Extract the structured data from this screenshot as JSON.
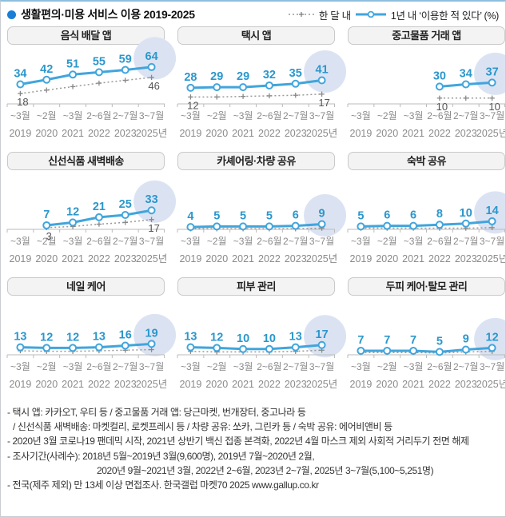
{
  "header": {
    "title": "생활편의·미용 서비스 이용 2019-2025",
    "legend": {
      "monthly_label": "한 달 내",
      "yearly_label": "1년 내  ‘이용한 적 있다’ (%)"
    }
  },
  "chart_data": {
    "type": "line",
    "unit": "%",
    "x_months": [
      "~3월",
      "~2월",
      "~3월",
      "2~6월",
      "2~7월",
      "3~7월"
    ],
    "x_years": [
      "2019",
      "2020",
      "2021",
      "2022",
      "2023",
      "2025년"
    ],
    "legend": [
      {
        "name": "한 달 내",
        "style": "dotted-gray-plus"
      },
      {
        "name": "1년 내 ‘이용한 적 있다’ (%)",
        "style": "solid-blue-circle"
      }
    ],
    "ylim": [
      0,
      70
    ],
    "grid": false,
    "charts": [
      {
        "title": "음식 배달 앱",
        "yearly": [
          34,
          42,
          51,
          55,
          59,
          64
        ],
        "monthly": [
          18,
          24,
          30,
          36,
          41,
          46
        ],
        "monthly_labels": [
          18,
          null,
          null,
          null,
          null,
          46
        ]
      },
      {
        "title": "택시 앱",
        "yearly": [
          28,
          29,
          29,
          32,
          35,
          41
        ],
        "monthly": [
          12,
          12,
          13,
          14,
          15,
          17
        ],
        "monthly_labels": [
          12,
          null,
          null,
          null,
          null,
          17
        ]
      },
      {
        "title": "중고물품 거래 앱",
        "yearly": [
          null,
          null,
          null,
          30,
          34,
          37
        ],
        "monthly": [
          null,
          null,
          null,
          10,
          10,
          10
        ],
        "monthly_labels": [
          null,
          null,
          null,
          10,
          null,
          10
        ]
      },
      {
        "title": "신선식품 새벽배송",
        "yearly": [
          null,
          7,
          12,
          21,
          25,
          33
        ],
        "monthly": [
          null,
          3,
          5,
          9,
          12,
          17
        ],
        "monthly_labels": [
          null,
          3,
          null,
          null,
          null,
          17
        ]
      },
      {
        "title": "카셰어링·차량 공유",
        "yearly": [
          4,
          5,
          5,
          5,
          6,
          9
        ],
        "monthly": [
          1,
          1,
          1,
          1,
          1,
          2
        ],
        "monthly_labels": [
          null,
          null,
          null,
          null,
          null,
          null
        ]
      },
      {
        "title": "숙박 공유",
        "yearly": [
          5,
          6,
          6,
          8,
          10,
          14
        ],
        "monthly": [
          2,
          2,
          2,
          2,
          2,
          3
        ],
        "monthly_labels": [
          null,
          null,
          null,
          null,
          null,
          null
        ]
      },
      {
        "title": "네일 케어",
        "yearly": [
          13,
          12,
          12,
          13,
          16,
          19
        ],
        "monthly": [
          7,
          6,
          6,
          7,
          8,
          9
        ],
        "monthly_labels": [
          null,
          null,
          null,
          null,
          null,
          null
        ]
      },
      {
        "title": "피부 관리",
        "yearly": [
          13,
          12,
          10,
          10,
          13,
          17
        ],
        "monthly": [
          6,
          5,
          5,
          5,
          6,
          8
        ],
        "monthly_labels": [
          null,
          null,
          null,
          null,
          null,
          null
        ]
      },
      {
        "title": "두피 케어·탈모 관리",
        "yearly": [
          7,
          7,
          7,
          5,
          9,
          12
        ],
        "monthly": [
          4,
          4,
          4,
          3,
          5,
          6
        ],
        "monthly_labels": [
          null,
          null,
          null,
          null,
          null,
          null
        ]
      }
    ]
  },
  "footer": {
    "lines": [
      "- 택시 앱: 카카오T, 우티 등 / 중고물품 거래 앱: 당근마켓, 번개장터, 중고나라 등",
      "/ 신선식품 새벽배송: 마켓컬리, 로켓프레시 등 / 차량 공유: 쏘카, 그린카 등 / 숙박 공유: 에어비앤비 등",
      "- 2020년 3월 코로나19 팬데믹 시작, 2021년 상반기 백신 접종 본격화, 2022년 4월 마스크 제외 사회적 거리두기 전면 해제",
      "- 조사기간(사례수):  2018년 5월~2019년 3월(9,600명), 2019년 7월~2020년 2월,",
      "2020년 9월~2021년 3월, 2022년 2~6월, 2023년 2~7월, 2025년 3~7월(5,100~5,251명)",
      "- 전국(제주 제외) 만 13세 이상 면접조사. 한국갤럽 마켓70 2025 www.gallup.co.kr"
    ]
  },
  "colors": {
    "line_blue": "#41a5dc",
    "value_label_blue": "#2b97cc",
    "monthly_gray": "#999999",
    "monthly_label_gray": "#555555",
    "axis_gray": "#bbbbbb",
    "tick_label_gray": "#8a8a8a",
    "highlight_circle": "#dbe3f3",
    "header_bullet": "#1a7ed6"
  }
}
